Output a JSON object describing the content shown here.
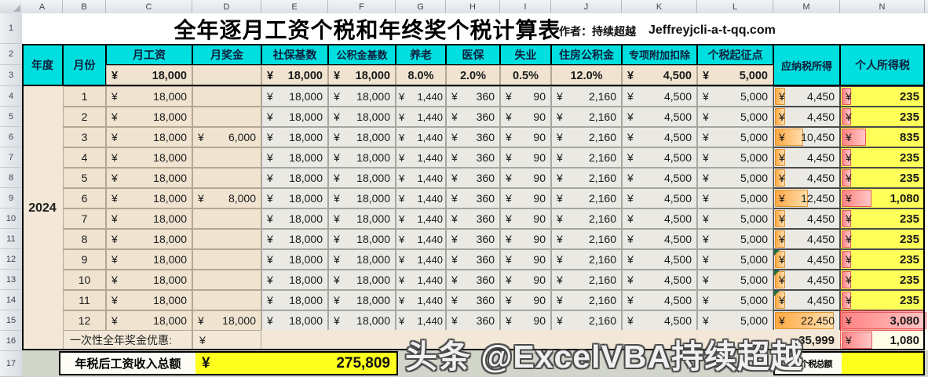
{
  "chrome": {
    "columns": [
      "A",
      "B",
      "C",
      "D",
      "E",
      "F",
      "G",
      "H",
      "I",
      "J",
      "K",
      "L",
      "M",
      "N"
    ],
    "rows": [
      "1",
      "2",
      "3",
      "4",
      "5",
      "6",
      "7",
      "8",
      "9",
      "10",
      "11",
      "12",
      "13",
      "14",
      "15",
      "16",
      "17"
    ]
  },
  "title": {
    "text": "全年逐月工资个税和年终奖个税计算表",
    "author": "作者：持续超越",
    "email": "Jeffreyjcli-a-t-qq.com"
  },
  "headers": {
    "year": "年度",
    "month": "月份",
    "salary": "月工资",
    "bonus": "月奖金",
    "social_base": "社保基数",
    "fund_base": "公积金基数",
    "pension": "养老",
    "medical": "医保",
    "unemployment": "失业",
    "housing_fund": "住房公积金",
    "special_deduction": "专项附加扣除",
    "tax_threshold": "个税起征点",
    "taxable_income": "应纳税所得",
    "personal_tax": "个人所得税"
  },
  "params": {
    "yen": "¥",
    "salary": "18,000",
    "social_base": "18,000",
    "fund_base": "18,000",
    "pension_rate": "8.0%",
    "medical_rate": "2.0%",
    "unemployment_rate": "0.5%",
    "housing_rate": "12.0%",
    "special_deduction": "4,500",
    "tax_threshold": "5,000"
  },
  "year_value": "2024",
  "months": [
    {
      "m": "1",
      "salary": "18,000",
      "bonus": "",
      "social": "18,000",
      "fund": "18,000",
      "pension": "1,440",
      "medical": "360",
      "unemployment": "90",
      "housing": "2,160",
      "special": "4,500",
      "threshold": "5,000",
      "taxable": "4,450",
      "taxable_pct": 13,
      "tax": "235",
      "tax_pct": 9,
      "full": false,
      "flag": false
    },
    {
      "m": "2",
      "salary": "18,000",
      "bonus": "",
      "social": "18,000",
      "fund": "18,000",
      "pension": "1,440",
      "medical": "360",
      "unemployment": "90",
      "housing": "2,160",
      "special": "4,500",
      "threshold": "5,000",
      "taxable": "4,450",
      "taxable_pct": 13,
      "tax": "235",
      "tax_pct": 9,
      "full": false,
      "flag": false
    },
    {
      "m": "3",
      "salary": "18,000",
      "bonus": "6,000",
      "social": "18,000",
      "fund": "18,000",
      "pension": "1,440",
      "medical": "360",
      "unemployment": "90",
      "housing": "2,160",
      "special": "4,500",
      "threshold": "5,000",
      "taxable": "10,450",
      "taxable_pct": 41,
      "tax": "835",
      "tax_pct": 27,
      "full": false,
      "flag": false
    },
    {
      "m": "4",
      "salary": "18,000",
      "bonus": "",
      "social": "18,000",
      "fund": "18,000",
      "pension": "1,440",
      "medical": "360",
      "unemployment": "90",
      "housing": "2,160",
      "special": "4,500",
      "threshold": "5,000",
      "taxable": "4,450",
      "taxable_pct": 13,
      "tax": "235",
      "tax_pct": 9,
      "full": false,
      "flag": false
    },
    {
      "m": "5",
      "salary": "18,000",
      "bonus": "",
      "social": "18,000",
      "fund": "18,000",
      "pension": "1,440",
      "medical": "360",
      "unemployment": "90",
      "housing": "2,160",
      "special": "4,500",
      "threshold": "5,000",
      "taxable": "4,450",
      "taxable_pct": 13,
      "tax": "235",
      "tax_pct": 9,
      "full": false,
      "flag": false
    },
    {
      "m": "6",
      "salary": "18,000",
      "bonus": "8,000",
      "social": "18,000",
      "fund": "18,000",
      "pension": "1,440",
      "medical": "360",
      "unemployment": "90",
      "housing": "2,160",
      "special": "4,500",
      "threshold": "5,000",
      "taxable": "12,450",
      "taxable_pct": 48,
      "tax": "1,080",
      "tax_pct": 34,
      "full": false,
      "flag": false
    },
    {
      "m": "7",
      "salary": "18,000",
      "bonus": "",
      "social": "18,000",
      "fund": "18,000",
      "pension": "1,440",
      "medical": "360",
      "unemployment": "90",
      "housing": "2,160",
      "special": "4,500",
      "threshold": "5,000",
      "taxable": "4,450",
      "taxable_pct": 13,
      "tax": "235",
      "tax_pct": 9,
      "full": false,
      "flag": false
    },
    {
      "m": "8",
      "salary": "18,000",
      "bonus": "",
      "social": "18,000",
      "fund": "18,000",
      "pension": "1,440",
      "medical": "360",
      "unemployment": "90",
      "housing": "2,160",
      "special": "4,500",
      "threshold": "5,000",
      "taxable": "4,450",
      "taxable_pct": 13,
      "tax": "235",
      "tax_pct": 9,
      "full": false,
      "flag": false
    },
    {
      "m": "9",
      "salary": "18,000",
      "bonus": "",
      "social": "18,000",
      "fund": "18,000",
      "pension": "1,440",
      "medical": "360",
      "unemployment": "90",
      "housing": "2,160",
      "special": "4,500",
      "threshold": "5,000",
      "taxable": "4,450",
      "taxable_pct": 13,
      "tax": "235",
      "tax_pct": 9,
      "full": false,
      "flag": true
    },
    {
      "m": "10",
      "salary": "18,000",
      "bonus": "",
      "social": "18,000",
      "fund": "18,000",
      "pension": "1,440",
      "medical": "360",
      "unemployment": "90",
      "housing": "2,160",
      "special": "4,500",
      "threshold": "5,000",
      "taxable": "4,450",
      "taxable_pct": 13,
      "tax": "235",
      "tax_pct": 9,
      "full": false,
      "flag": true
    },
    {
      "m": "11",
      "salary": "18,000",
      "bonus": "",
      "social": "18,000",
      "fund": "18,000",
      "pension": "1,440",
      "medical": "360",
      "unemployment": "90",
      "housing": "2,160",
      "special": "4,500",
      "threshold": "5,000",
      "taxable": "4,450",
      "taxable_pct": 13,
      "tax": "235",
      "tax_pct": 9,
      "full": false,
      "flag": true
    },
    {
      "m": "12",
      "salary": "18,000",
      "bonus": "18,000",
      "social": "18,000",
      "fund": "18,000",
      "pension": "1,440",
      "medical": "360",
      "unemployment": "90",
      "housing": "2,160",
      "special": "4,500",
      "threshold": "5,000",
      "taxable": "22,450",
      "taxable_pct": 88,
      "tax": "3,080",
      "tax_pct": 100,
      "full": true,
      "flag": false
    }
  ],
  "bonus_row": {
    "label": "一次性全年奖金优惠:",
    "yen": "¥",
    "amount": "35,999",
    "tax_yen": "¥",
    "tax": "1,080",
    "tax_bar_pct": 35
  },
  "summary": {
    "after_tax_label": "年税后工资收入总额",
    "after_tax_yen": "¥",
    "after_tax_value": "275,809",
    "total_tax_label": "全年个税总额",
    "total_tax_value": ""
  },
  "watermark": "头条 @ExcelVBA持续超越",
  "colors": {
    "header_bg": "#00dfdf",
    "row_bg": "#f3e8d7",
    "input_bg": "#f0e4d1",
    "calc_bg": "#eae9e4",
    "yellow_cell": "#ffff5a",
    "summary_yellow": "#ffff1e",
    "orange_bar": "#ffa843",
    "red_bar": "#ff8282",
    "flag_green": "#1e7145"
  }
}
